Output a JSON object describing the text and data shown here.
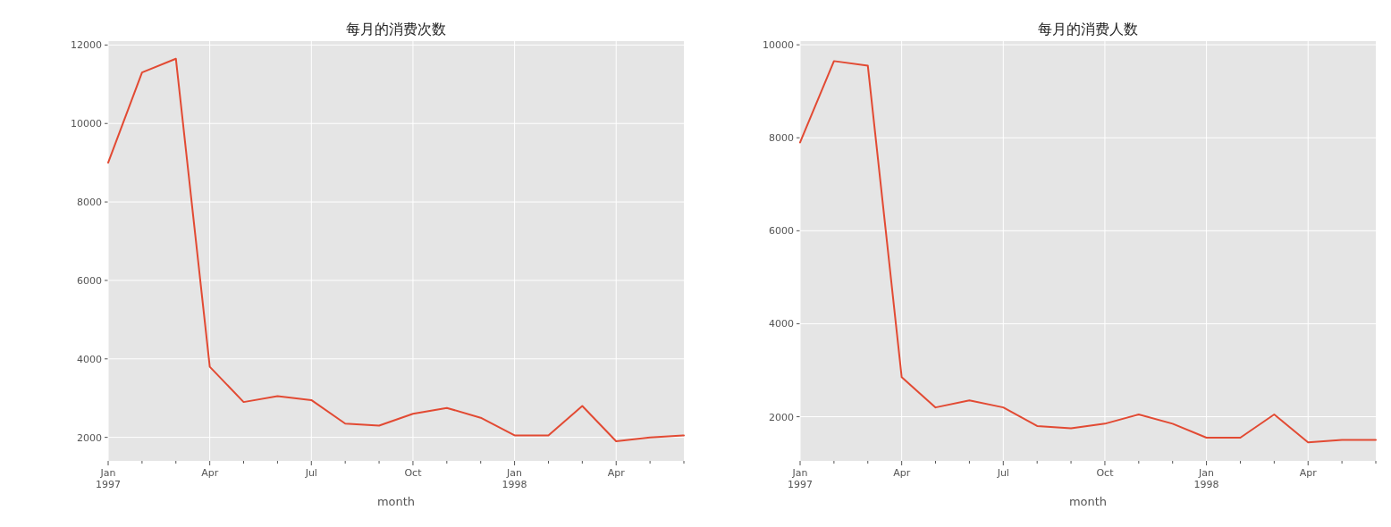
{
  "chart_data": [
    {
      "type": "line",
      "title": "每月的消费次数",
      "xlabel": "month",
      "grid": true,
      "x": [
        "1997-01",
        "1997-02",
        "1997-03",
        "1997-04",
        "1997-05",
        "1997-06",
        "1997-07",
        "1997-08",
        "1997-09",
        "1997-10",
        "1997-11",
        "1997-12",
        "1998-01",
        "1998-02",
        "1998-03",
        "1998-04",
        "1998-05",
        "1998-06"
      ],
      "series": [
        {
          "color": "#e24a33",
          "values": [
            9000,
            11300,
            11650,
            3800,
            2900,
            3050,
            2950,
            2350,
            2300,
            2600,
            2750,
            2500,
            2050,
            2050,
            2800,
            1900,
            2000,
            2050
          ]
        }
      ],
      "xlim": [
        "1997-01",
        "1998-06"
      ],
      "xticks": [
        {
          "value": "1997-01",
          "label": "Jan\n1997"
        },
        {
          "value": "1997-02",
          "label": null
        },
        {
          "value": "1997-03",
          "label": null
        },
        {
          "value": "1997-04",
          "label": "Apr"
        },
        {
          "value": "1997-05",
          "label": null
        },
        {
          "value": "1997-06",
          "label": null
        },
        {
          "value": "1997-07",
          "label": "Jul"
        },
        {
          "value": "1997-08",
          "label": null
        },
        {
          "value": "1997-09",
          "label": null
        },
        {
          "value": "1997-10",
          "label": "Oct"
        },
        {
          "value": "1997-11",
          "label": null
        },
        {
          "value": "1997-12",
          "label": null
        },
        {
          "value": "1998-01",
          "label": "Jan\n1998"
        },
        {
          "value": "1998-02",
          "label": null
        },
        {
          "value": "1998-03",
          "label": null
        },
        {
          "value": "1998-04",
          "label": "Apr"
        },
        {
          "value": "1998-05",
          "label": null
        },
        {
          "value": "1998-06",
          "label": null
        }
      ],
      "ylim": [
        1400,
        12100
      ],
      "yticks": [
        2000,
        4000,
        6000,
        8000,
        10000,
        12000
      ]
    },
    {
      "type": "line",
      "title": "每月的消费人数",
      "xlabel": "month",
      "grid": true,
      "x": [
        "1997-01",
        "1997-02",
        "1997-03",
        "1997-04",
        "1997-05",
        "1997-06",
        "1997-07",
        "1997-08",
        "1997-09",
        "1997-10",
        "1997-11",
        "1997-12",
        "1998-01",
        "1998-02",
        "1998-03",
        "1998-04",
        "1998-05",
        "1998-06"
      ],
      "series": [
        {
          "color": "#e24a33",
          "values": [
            7900,
            9650,
            9550,
            2850,
            2200,
            2350,
            2200,
            1800,
            1750,
            1850,
            2050,
            1850,
            1550,
            1550,
            2050,
            1450,
            1500,
            1500
          ]
        }
      ],
      "xlim": [
        "1997-01",
        "1998-06"
      ],
      "xticks": [
        {
          "value": "1997-01",
          "label": "Jan\n1997"
        },
        {
          "value": "1997-02",
          "label": null
        },
        {
          "value": "1997-03",
          "label": null
        },
        {
          "value": "1997-04",
          "label": "Apr"
        },
        {
          "value": "1997-05",
          "label": null
        },
        {
          "value": "1997-06",
          "label": null
        },
        {
          "value": "1997-07",
          "label": "Jul"
        },
        {
          "value": "1997-08",
          "label": null
        },
        {
          "value": "1997-09",
          "label": null
        },
        {
          "value": "1997-10",
          "label": "Oct"
        },
        {
          "value": "1997-11",
          "label": null
        },
        {
          "value": "1997-12",
          "label": null
        },
        {
          "value": "1998-01",
          "label": "Jan\n1998"
        },
        {
          "value": "1998-02",
          "label": null
        },
        {
          "value": "1998-03",
          "label": null
        },
        {
          "value": "1998-04",
          "label": "Apr"
        },
        {
          "value": "1998-05",
          "label": null
        },
        {
          "value": "1998-06",
          "label": null
        }
      ],
      "ylim": [
        1050,
        10080
      ],
      "yticks": [
        2000,
        4000,
        6000,
        8000,
        10000
      ]
    }
  ]
}
